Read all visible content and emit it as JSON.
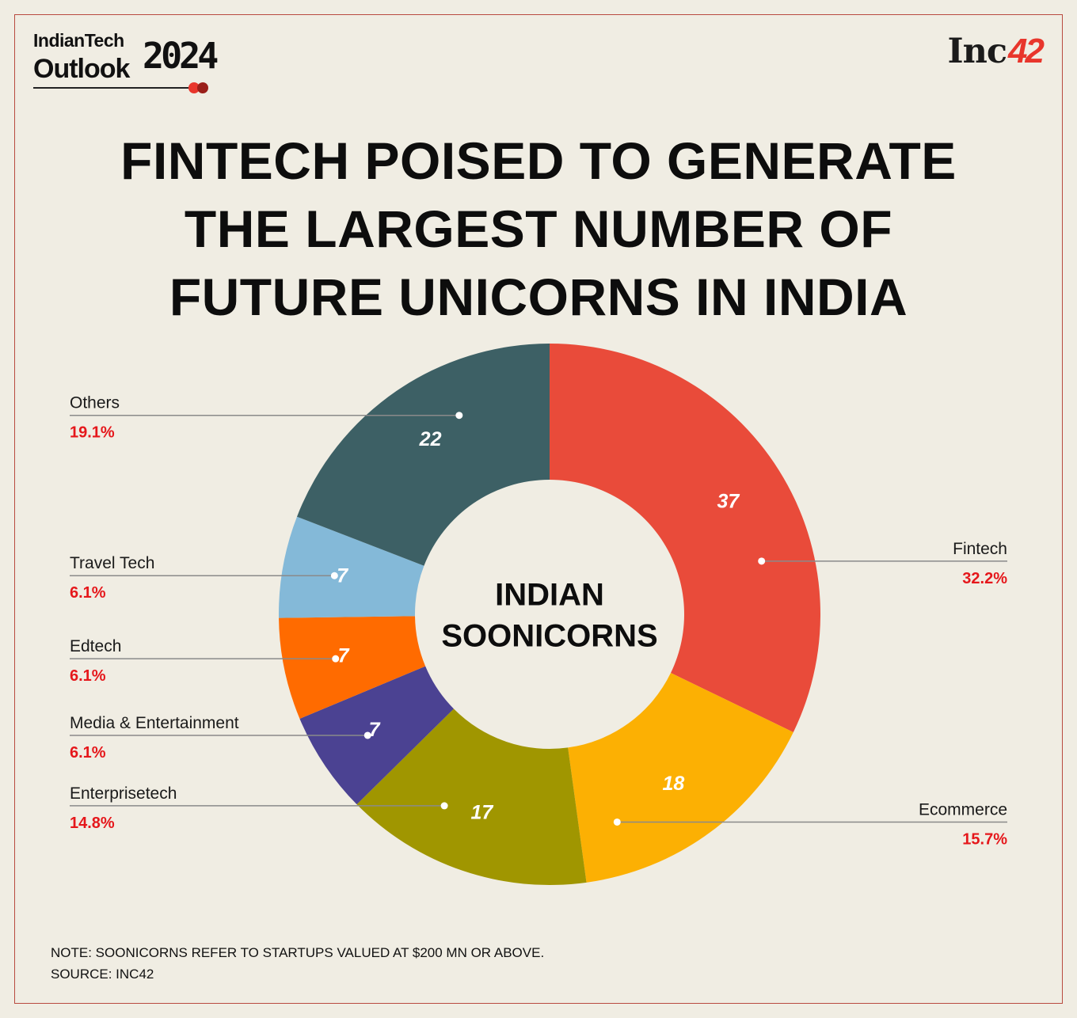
{
  "brand": {
    "report_line1": "IndianTech",
    "report_line2": "Outlook",
    "report_year": "2024",
    "publisher_name": "Inc",
    "publisher_number": "42"
  },
  "title_lines": [
    "FINTECH POISED TO GENERATE",
    "THE LARGEST NUMBER OF",
    "FUTURE UNICORNS IN INDIA"
  ],
  "chart_data": {
    "type": "pie",
    "variant": "donut",
    "center_label_lines": [
      "INDIAN",
      "SOONICORNS"
    ],
    "start_angle_deg": 0,
    "direction": "clockwise",
    "slices": [
      {
        "category": "Fintech",
        "value": 37,
        "percent": "32.2%",
        "color": "#e94b3a",
        "label_side": "right"
      },
      {
        "category": "Ecommerce",
        "value": 18,
        "percent": "15.7%",
        "color": "#fcb003",
        "label_side": "right"
      },
      {
        "category": "Enterprisetech",
        "value": 17,
        "percent": "14.8%",
        "color": "#a09600",
        "label_side": "left"
      },
      {
        "category": "Media & Entertainment",
        "value": 7,
        "percent": "6.1%",
        "color": "#4b4292",
        "label_side": "left"
      },
      {
        "category": "Edtech",
        "value": 7,
        "percent": "6.1%",
        "color": "#ff6b00",
        "label_side": "left"
      },
      {
        "category": "Travel Tech",
        "value": 7,
        "percent": "6.1%",
        "color": "#84b9d8",
        "label_side": "left"
      },
      {
        "category": "Others",
        "value": 22,
        "percent": "19.1%",
        "color": "#3d6065",
        "label_side": "left"
      }
    ],
    "colors": {
      "percent_text": "#e5171b",
      "value_text": "#ffffff",
      "leader_line": "#8a8a8a"
    }
  },
  "footnote": {
    "note": "NOTE: SOONICORNS REFER TO STARTUPS VALUED AT $200 MN OR ABOVE.",
    "source": "SOURCE: INC42"
  }
}
